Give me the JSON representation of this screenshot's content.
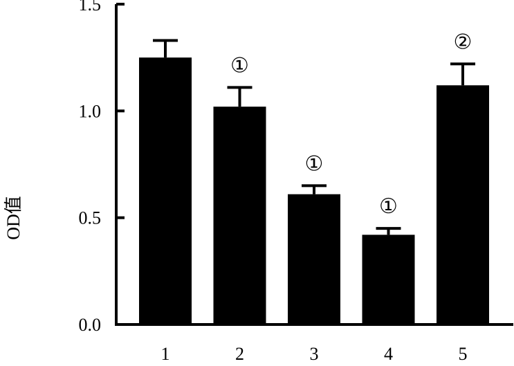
{
  "chart_data": {
    "type": "bar",
    "categories": [
      "1",
      "2",
      "3",
      "4",
      "5"
    ],
    "values": [
      1.25,
      1.02,
      0.61,
      0.42,
      1.12
    ],
    "errors": [
      0.08,
      0.09,
      0.04,
      0.03,
      0.1
    ],
    "annotations": [
      "",
      "①",
      "①",
      "①",
      "②"
    ],
    "ylabel": "OD值",
    "ylim": [
      0,
      1.5
    ],
    "yticks": [
      0,
      0.5,
      1.0,
      1.5
    ],
    "ytick_labels": [
      "0.0",
      "0.5",
      "1.0",
      "1.5"
    ],
    "bar_color": "#000000",
    "grid": false,
    "legend": "none"
  }
}
